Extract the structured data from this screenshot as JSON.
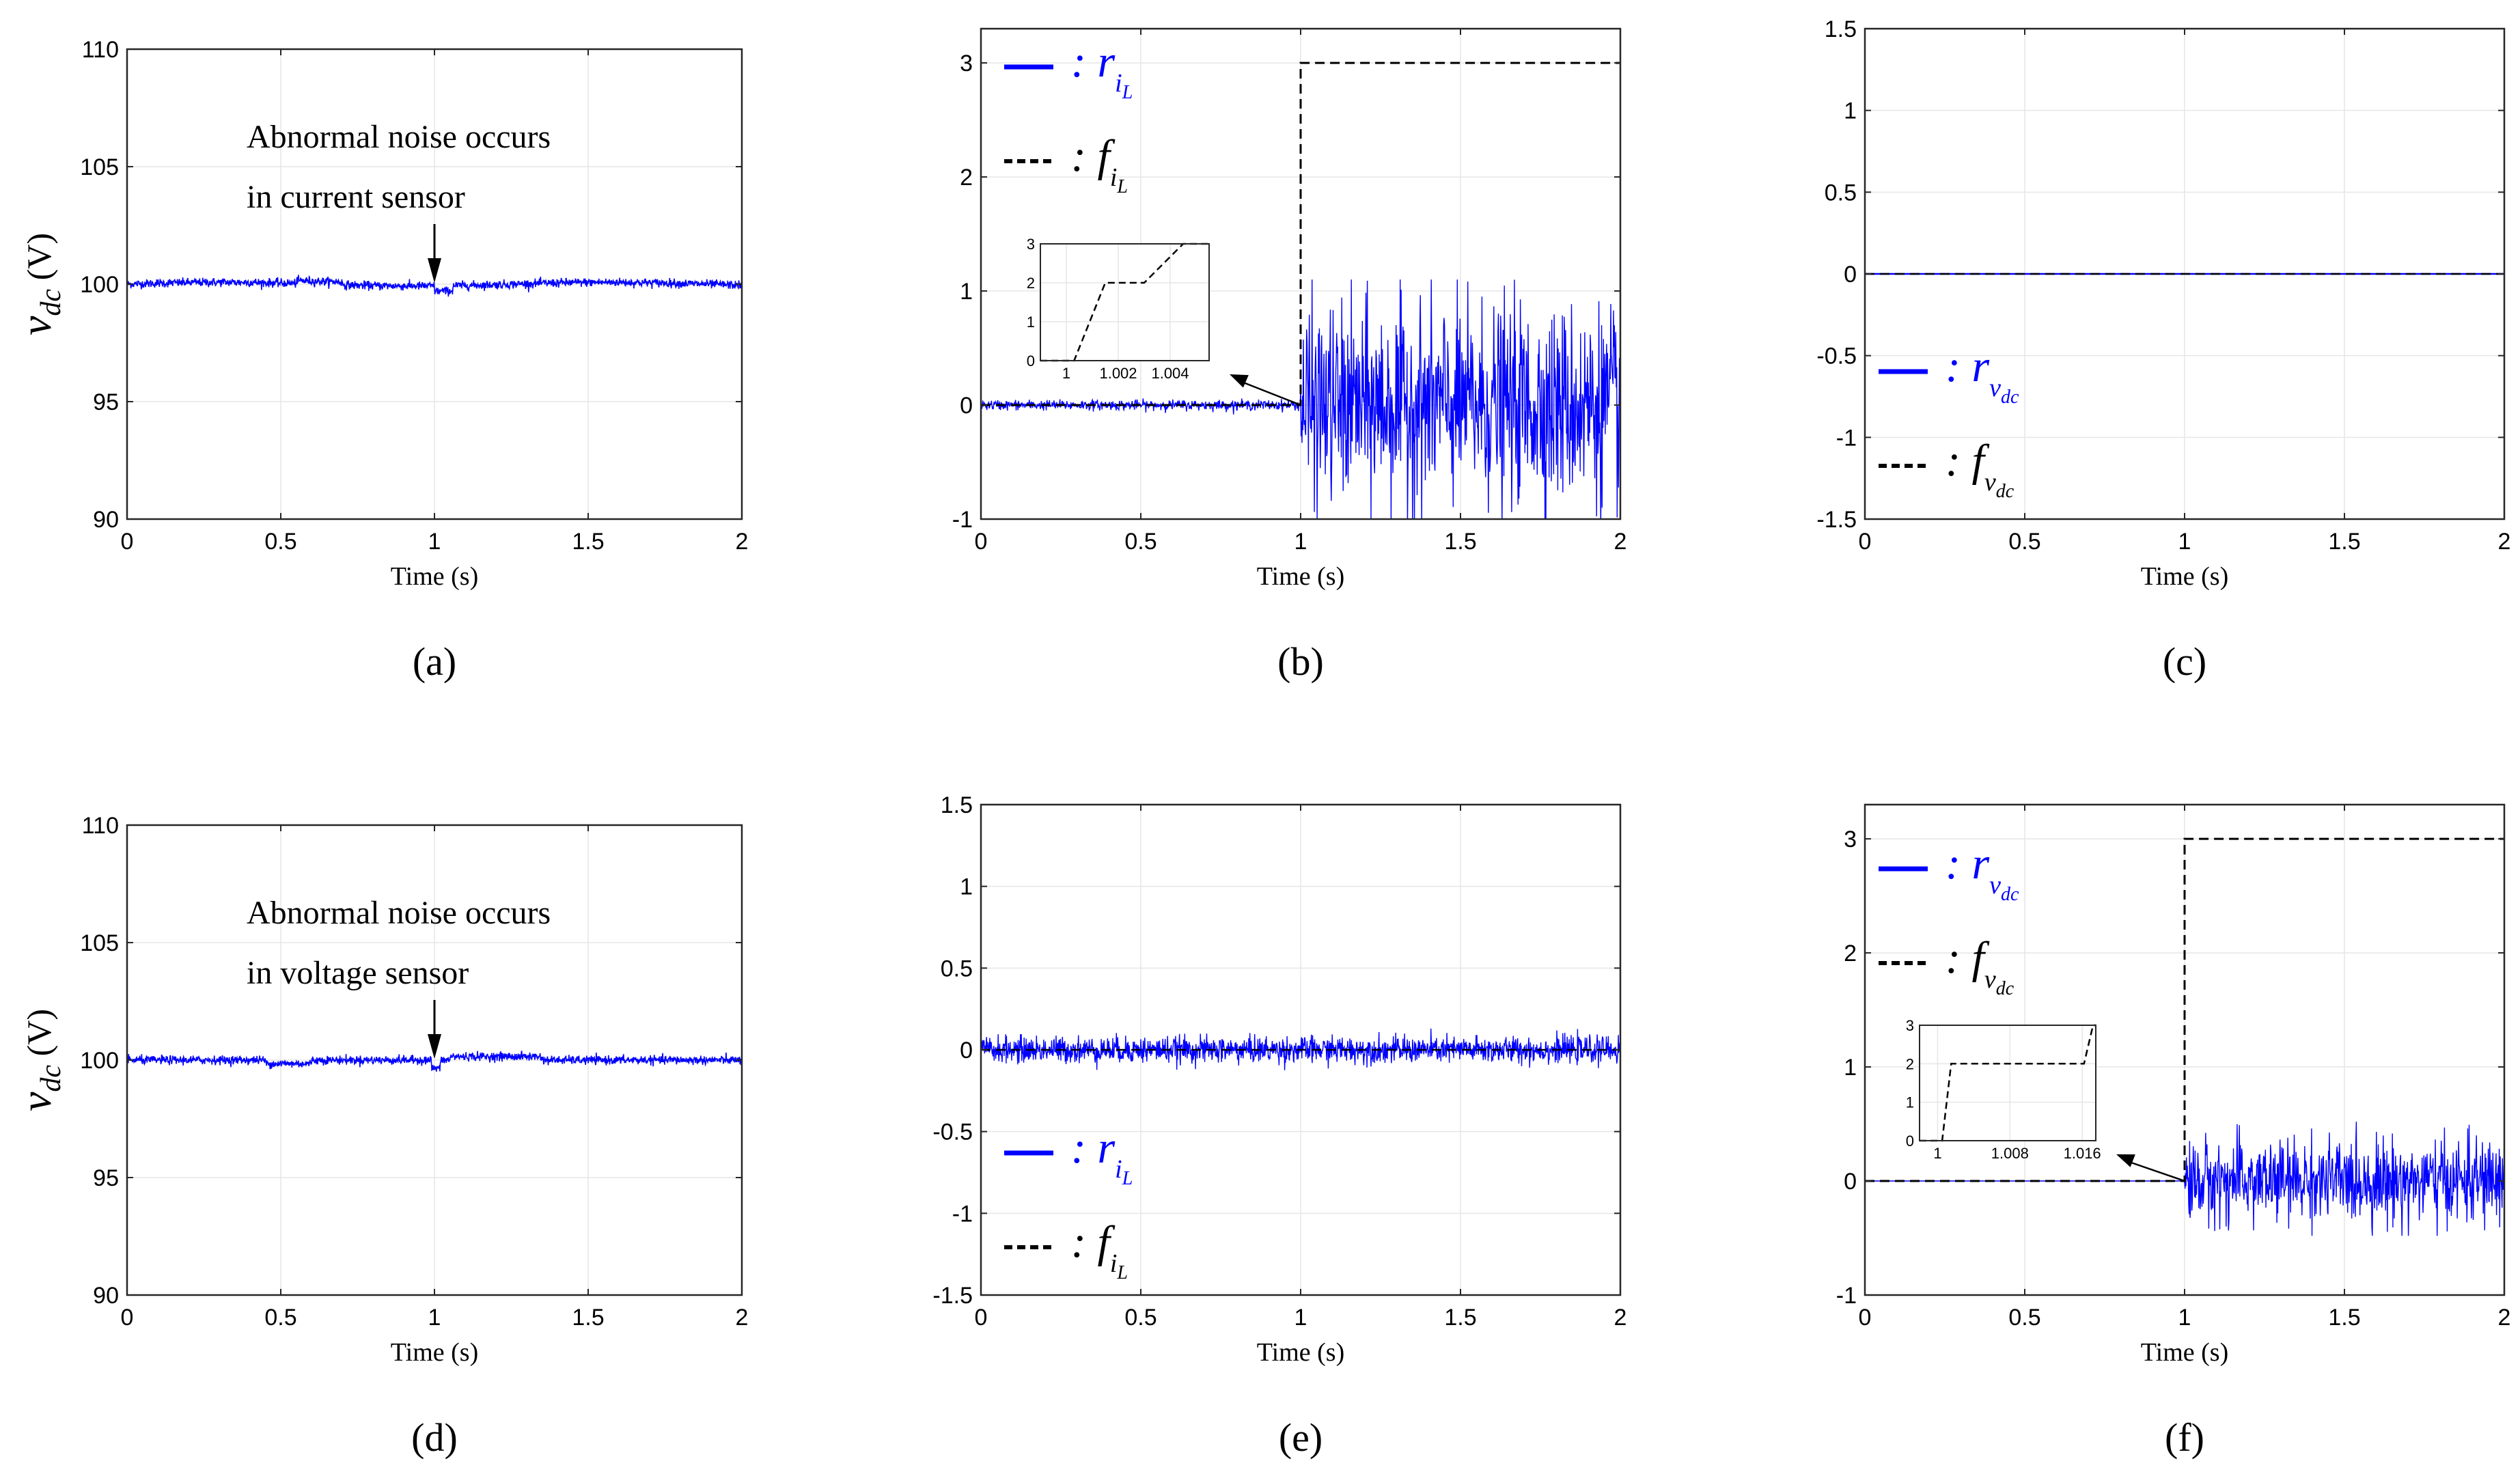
{
  "chart_data": [
    {
      "id": "a",
      "type": "line",
      "panel_label": "(a)",
      "ylabel": "v_dc (V)",
      "xlabel": "Time (s)",
      "xlim": [
        0,
        2
      ],
      "ylim": [
        90,
        110
      ],
      "xticks": [
        "0",
        "0.5",
        "1",
        "1.5",
        "2"
      ],
      "yticks": [
        "90",
        "95",
        "100",
        "105",
        "110"
      ],
      "annotation": [
        "Abnormal noise occurs",
        "in current sensor"
      ],
      "series": [
        {
          "name": "v_dc",
          "color": "#0000ff",
          "description": "noisy trace around 100 V, amplitude about ±0.3 V, slight dip at t=1 s"
        }
      ]
    },
    {
      "id": "b",
      "type": "line",
      "panel_label": "(b)",
      "xlabel": "Time (s)",
      "xlim": [
        0,
        2
      ],
      "ylim": [
        -1,
        3.3
      ],
      "xticks": [
        "0",
        "0.5",
        "1",
        "1.5",
        "2"
      ],
      "yticks": [
        "-1",
        "0",
        "1",
        "2",
        "3"
      ],
      "legend": [
        {
          "symbol": ": r",
          "sub": "iL",
          "color": "#0000ff",
          "style": "solid"
        },
        {
          "symbol": ": f",
          "sub": "iL",
          "color": "#000000",
          "style": "dashed"
        }
      ],
      "series": [
        {
          "name": "r_iL",
          "color": "#0000ff",
          "description": "near 0 (±0.05) before t=1 s, then random noise between -1 and 1.05"
        },
        {
          "name": "f_iL",
          "color": "#000000",
          "values_step": [
            [
              0,
              0
            ],
            [
              1,
              0
            ],
            [
              1,
              3
            ],
            [
              2,
              3
            ]
          ]
        }
      ],
      "inset": {
        "xlim": [
          0.999,
          1.0055
        ],
        "ylim": [
          0,
          3
        ],
        "xticks": [
          "1",
          "1.002",
          "1.004"
        ],
        "yticks": [
          "0",
          "1",
          "2",
          "3"
        ],
        "line": [
          [
            0.999,
            0
          ],
          [
            1.0003,
            0
          ],
          [
            1.0015,
            2
          ],
          [
            1.003,
            2
          ],
          [
            1.0045,
            3
          ],
          [
            1.0055,
            3
          ]
        ]
      }
    },
    {
      "id": "c",
      "type": "line",
      "panel_label": "(c)",
      "xlabel": "Time (s)",
      "xlim": [
        0,
        2
      ],
      "ylim": [
        -1.5,
        1.5
      ],
      "xticks": [
        "0",
        "0.5",
        "1",
        "1.5",
        "2"
      ],
      "yticks": [
        "-1.5",
        "-1",
        "-0.5",
        "0",
        "0.5",
        "1",
        "1.5"
      ],
      "legend": [
        {
          "symbol": ": r",
          "sub": "vdc",
          "color": "#0000ff",
          "style": "solid"
        },
        {
          "symbol": ": f",
          "sub": "vdc",
          "color": "#000000",
          "style": "dashed"
        }
      ],
      "series": [
        {
          "name": "r_vdc",
          "color": "#0000ff",
          "values_const": 0
        },
        {
          "name": "f_vdc",
          "color": "#000000",
          "values_const": 0
        }
      ]
    },
    {
      "id": "d",
      "type": "line",
      "panel_label": "(d)",
      "ylabel": "v_dc (V)",
      "xlabel": "Time (s)",
      "xlim": [
        0,
        2
      ],
      "ylim": [
        90,
        110
      ],
      "xticks": [
        "0",
        "0.5",
        "1",
        "1.5",
        "2"
      ],
      "yticks": [
        "90",
        "95",
        "100",
        "105",
        "110"
      ],
      "annotation": [
        "Abnormal noise occurs",
        "in voltage sensor"
      ],
      "series": [
        {
          "name": "v_dc",
          "color": "#0000ff",
          "description": "noisy trace around 100 V, amplitude about ±0.3 V, small dip at t=1 s"
        }
      ]
    },
    {
      "id": "e",
      "type": "line",
      "panel_label": "(e)",
      "xlabel": "Time (s)",
      "xlim": [
        0,
        2
      ],
      "ylim": [
        -1.5,
        1.5
      ],
      "xticks": [
        "0",
        "0.5",
        "1",
        "1.5",
        "2"
      ],
      "yticks": [
        "-1.5",
        "-1",
        "-0.5",
        "0",
        "0.5",
        "1",
        "1.5"
      ],
      "legend": [
        {
          "symbol": ": r",
          "sub": "iL",
          "color": "#0000ff",
          "style": "solid"
        },
        {
          "symbol": ": f",
          "sub": "iL",
          "color": "#000000",
          "style": "dashed"
        }
      ],
      "series": [
        {
          "name": "r_iL",
          "color": "#0000ff",
          "description": "noise around 0 with amplitude about ±0.1 over whole range"
        },
        {
          "name": "f_iL",
          "color": "#000000",
          "values_const": 0
        }
      ]
    },
    {
      "id": "f",
      "type": "line",
      "panel_label": "(f)",
      "xlabel": "Time (s)",
      "xlim": [
        0,
        2
      ],
      "ylim": [
        -1,
        3.3
      ],
      "xticks": [
        "0",
        "0.5",
        "1",
        "1.5",
        "2"
      ],
      "yticks": [
        "-1",
        "0",
        "1",
        "2",
        "3"
      ],
      "legend": [
        {
          "symbol": ": r",
          "sub": "vdc",
          "color": "#0000ff",
          "style": "solid"
        },
        {
          "symbol": ": f",
          "sub": "vdc",
          "color": "#000000",
          "style": "dashed"
        }
      ],
      "series": [
        {
          "name": "r_vdc",
          "color": "#0000ff",
          "description": "0 before t=1 s, then noise between -0.45 and 0.5"
        },
        {
          "name": "f_vdc",
          "color": "#000000",
          "values_step": [
            [
              0,
              0
            ],
            [
              1,
              0
            ],
            [
              1,
              3
            ],
            [
              2,
              3
            ]
          ]
        }
      ],
      "inset": {
        "xlim": [
          0.998,
          1.0175
        ],
        "ylim": [
          0,
          3
        ],
        "xticks": [
          "1",
          "1.008",
          "1.016"
        ],
        "yticks": [
          "0",
          "1",
          "2",
          "3"
        ],
        "line": [
          [
            0.998,
            0
          ],
          [
            1.0005,
            0
          ],
          [
            1.0015,
            2
          ],
          [
            1.0162,
            2
          ],
          [
            1.0172,
            3
          ],
          [
            1.0175,
            3
          ]
        ]
      }
    }
  ]
}
